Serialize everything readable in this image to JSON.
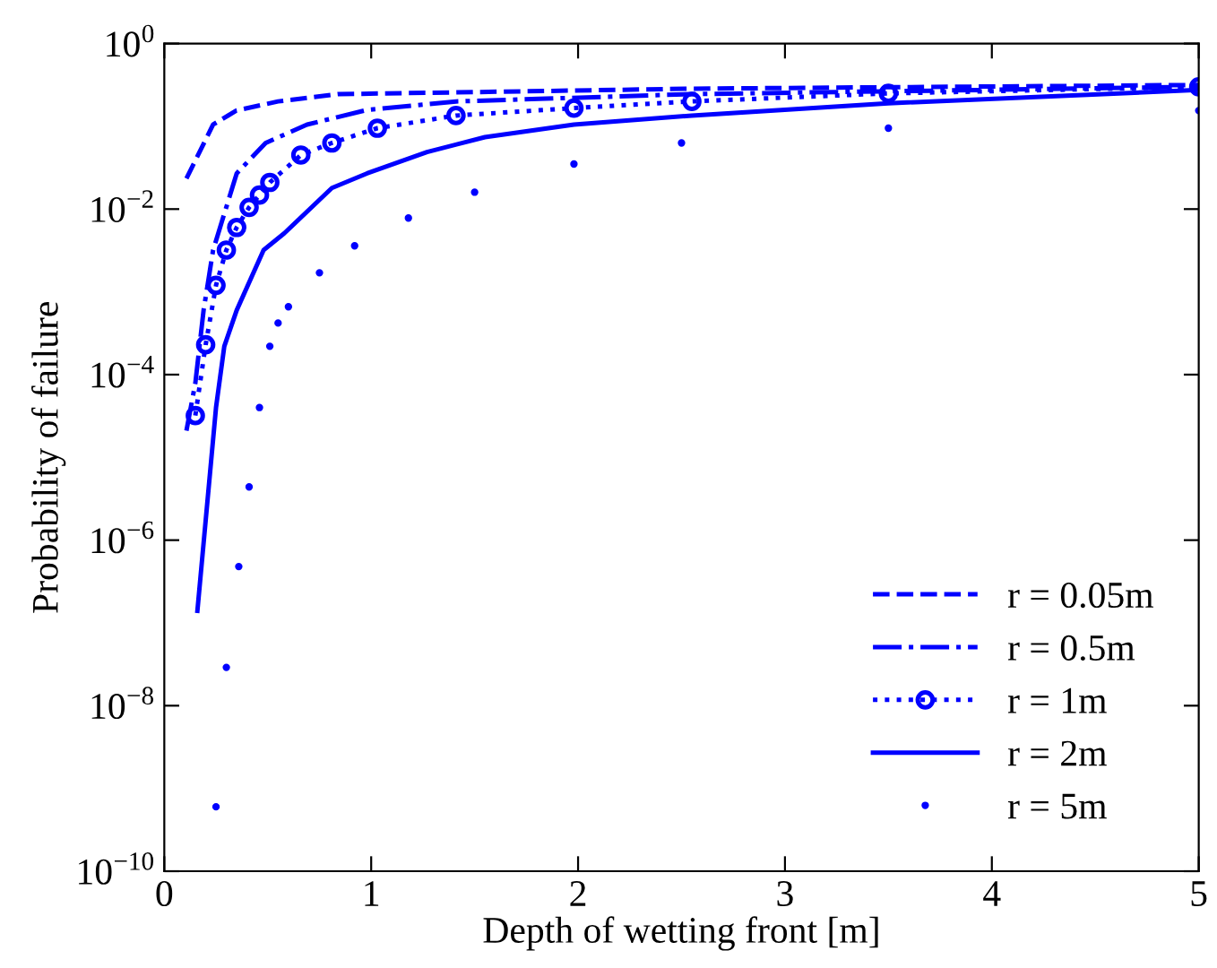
{
  "chart_data": {
    "type": "line",
    "xlabel": "Depth of wetting front [m]",
    "ylabel": "Probability of failure",
    "log": "y",
    "xlim": [
      0,
      5
    ],
    "xticks": [
      0,
      1,
      2,
      3,
      4,
      5
    ],
    "ylim": [
      1e-10,
      1
    ],
    "yticks": [
      {
        "value": 1e-10,
        "label": "10$^{−10}$"
      },
      {
        "value": 1e-08,
        "label": "10$^{−8}$"
      },
      {
        "value": 1e-06,
        "label": "10$^{−6}$"
      },
      {
        "value": 0.0001,
        "label": "10$^{−4}$"
      },
      {
        "value": 0.01,
        "label": "10$^{−2}$"
      },
      {
        "value": 1,
        "label": "10$^{0}$"
      }
    ],
    "grid": false,
    "legend": "bottom right",
    "series": [
      {
        "name": "r = 0.05m",
        "color": "#0000ff",
        "line_style": "dashed",
        "marker": "none",
        "x": [
          0.107,
          0.236,
          0.348,
          0.55,
          0.84,
          1.41,
          2.55,
          5
        ],
        "values": [
          0.0234,
          0.105,
          0.155,
          0.2,
          0.245,
          0.257,
          0.285,
          0.316
        ]
      },
      {
        "name": "r = 0.5m",
        "color": "#0000ff",
        "line_style": "dashdot",
        "marker": "none",
        "x": [
          0.107,
          0.15,
          0.19,
          0.236,
          0.35,
          0.49,
          0.69,
          0.98,
          1.41,
          2.55,
          5
        ],
        "values": [
          2.1e-05,
          7.9e-05,
          0.0006,
          0.0032,
          0.027,
          0.063,
          0.105,
          0.158,
          0.2,
          0.245,
          0.3
        ]
      },
      {
        "name": "r = 1m",
        "color": "#0000ff",
        "line_style": "dotted",
        "marker": "circle",
        "x": [
          0.15,
          0.2,
          0.25,
          0.3,
          0.35,
          0.41,
          0.46,
          0.51,
          0.66,
          0.81,
          1.03,
          1.41,
          1.98,
          2.55,
          3.5,
          5
        ],
        "values": [
          3.2e-05,
          0.00023,
          0.0012,
          0.0032,
          0.006,
          0.0105,
          0.0148,
          0.021,
          0.045,
          0.063,
          0.095,
          0.135,
          0.166,
          0.2,
          0.25,
          0.3
        ]
      },
      {
        "name": "r = 2m",
        "color": "#0000ff",
        "line_style": "solid",
        "marker": "none",
        "x": [
          0.16,
          0.25,
          0.29,
          0.35,
          0.48,
          0.58,
          0.81,
          0.98,
          1.27,
          1.55,
          1.98,
          2.55,
          3.5,
          5
        ],
        "values": [
          1.4e-07,
          4e-05,
          0.00022,
          0.0006,
          0.0032,
          0.0051,
          0.018,
          0.027,
          0.049,
          0.074,
          0.105,
          0.135,
          0.19,
          0.275
        ]
      },
      {
        "name": "r = 5m",
        "color": "#0000ff",
        "type": "scatter",
        "marker": "point",
        "x": [
          0.25,
          0.3,
          0.36,
          0.41,
          0.46,
          0.51,
          0.55,
          0.6,
          0.75,
          0.92,
          1.18,
          1.5,
          1.98,
          2.5,
          3.5,
          5
        ],
        "values": [
          6e-10,
          2.9e-08,
          4.8e-07,
          4.4e-06,
          4e-05,
          0.00022,
          0.00042,
          0.00066,
          0.0017,
          0.0036,
          0.0078,
          0.016,
          0.035,
          0.063,
          0.095,
          0.155
        ]
      }
    ]
  }
}
